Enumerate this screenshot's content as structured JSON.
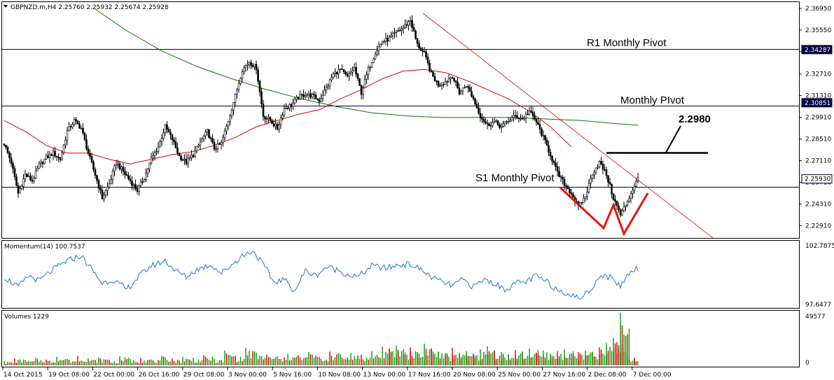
{
  "header": {
    "symbol_line": "GBPNZD.m,H4  2.25760 2.25932 2.25674 2.25928"
  },
  "levels": {
    "r1": "R1 Monthly Pivot",
    "pivot": "Monthly PIvot",
    "s1": "S1 Monthly Pivot",
    "target": "2.2980"
  },
  "price_axis": {
    "ticks": [
      "2.36950",
      "2.35550",
      "2.34150",
      "2.32710",
      "2.31310",
      "2.29910",
      "2.28510",
      "2.27110",
      "2.25710",
      "2.24310",
      "2.22910"
    ],
    "badges": [
      {
        "value": "2.34287",
        "kind": "level"
      },
      {
        "value": "2.30851",
        "kind": "level"
      },
      {
        "value": "2.25930",
        "kind": "bid"
      }
    ]
  },
  "momentum": {
    "title": "Momentum(14) 100.7537",
    "ticks": [
      "102.7875",
      "97.6477"
    ],
    "color": "#1e78d2"
  },
  "volumes": {
    "title": "Volumes 1229",
    "ticks": [
      "49577",
      "0"
    ],
    "up_color": "#00a000",
    "down_color": "#e00000"
  },
  "time_axis": {
    "labels": [
      "14 Oct 2015",
      "19 Oct 08:00",
      "22 Oct 00:00",
      "26 Oct 16:00",
      "29 Oct 08:00",
      "3 Nov 00:00",
      "5 Nov 16:00",
      "10 Nov 08:00",
      "13 Nov 00:00",
      "17 Nov 16:00",
      "20 Nov 08:00",
      "25 Nov 00:00",
      "27 Nov 16:00",
      "2 Dec 08:00",
      "7 Dec 00:00"
    ]
  },
  "chart_data": {
    "type": "candlestick",
    "symbol": "GBPNZD.m",
    "timeframe": "H4",
    "ylim": [
      2.2225,
      2.3722
    ],
    "grid": false,
    "ma_colors": {
      "fast": "#e00000",
      "slow": "#007a00"
    },
    "annotation_colors": {
      "pattern": "#e8140a",
      "trendline": "#e00000",
      "target": "#000000"
    },
    "pivots": {
      "r1": 2.34287,
      "pivot": 2.30851,
      "s1": 2.2593,
      "target": 2.298
    },
    "close_path": [
      [
        0,
        2.282
      ],
      [
        4,
        2.27
      ],
      [
        8,
        2.25
      ],
      [
        12,
        2.262
      ],
      [
        16,
        2.258
      ],
      [
        20,
        2.268
      ],
      [
        24,
        2.273
      ],
      [
        28,
        2.276
      ],
      [
        32,
        2.272
      ],
      [
        36,
        2.29
      ],
      [
        40,
        2.297
      ],
      [
        44,
        2.292
      ],
      [
        48,
        2.276
      ],
      [
        52,
        2.262
      ],
      [
        56,
        2.247
      ],
      [
        60,
        2.256
      ],
      [
        64,
        2.27
      ],
      [
        68,
        2.264
      ],
      [
        72,
        2.258
      ],
      [
        76,
        2.252
      ],
      [
        80,
        2.26
      ],
      [
        84,
        2.272
      ],
      [
        88,
        2.28
      ],
      [
        92,
        2.293
      ],
      [
        96,
        2.285
      ],
      [
        100,
        2.274
      ],
      [
        104,
        2.27
      ],
      [
        108,
        2.275
      ],
      [
        112,
        2.283
      ],
      [
        116,
        2.29
      ],
      [
        120,
        2.279
      ],
      [
        124,
        2.282
      ],
      [
        128,
        2.297
      ],
      [
        132,
        2.313
      ],
      [
        136,
        2.33
      ],
      [
        140,
        2.335
      ],
      [
        144,
        2.331
      ],
      [
        148,
        2.3
      ],
      [
        152,
        2.297
      ],
      [
        156,
        2.292
      ],
      [
        160,
        2.305
      ],
      [
        164,
        2.307
      ],
      [
        168,
        2.312
      ],
      [
        172,
        2.314
      ],
      [
        176,
        2.313
      ],
      [
        180,
        2.31
      ],
      [
        184,
        2.318
      ],
      [
        188,
        2.327
      ],
      [
        192,
        2.33
      ],
      [
        196,
        2.325
      ],
      [
        200,
        2.331
      ],
      [
        204,
        2.315
      ],
      [
        208,
        2.33
      ],
      [
        212,
        2.341
      ],
      [
        216,
        2.348
      ],
      [
        220,
        2.35
      ],
      [
        224,
        2.354
      ],
      [
        228,
        2.357
      ],
      [
        232,
        2.362
      ],
      [
        236,
        2.346
      ],
      [
        240,
        2.34
      ],
      [
        244,
        2.327
      ],
      [
        248,
        2.32
      ],
      [
        252,
        2.322
      ],
      [
        256,
        2.326
      ],
      [
        260,
        2.315
      ],
      [
        264,
        2.32
      ],
      [
        268,
        2.311
      ],
      [
        272,
        2.3
      ],
      [
        276,
        2.294
      ],
      [
        280,
        2.296
      ],
      [
        284,
        2.293
      ],
      [
        288,
        2.297
      ],
      [
        292,
        2.3
      ],
      [
        296,
        2.298
      ],
      [
        300,
        2.303
      ],
      [
        304,
        2.296
      ],
      [
        308,
        2.286
      ],
      [
        312,
        2.275
      ],
      [
        316,
        2.263
      ],
      [
        320,
        2.256
      ],
      [
        324,
        2.25
      ],
      [
        328,
        2.241
      ],
      [
        332,
        2.248
      ],
      [
        336,
        2.263
      ],
      [
        340,
        2.27
      ],
      [
        344,
        2.262
      ],
      [
        348,
        2.247
      ],
      [
        352,
        2.236
      ],
      [
        356,
        2.245
      ],
      [
        360,
        2.255
      ],
      [
        362,
        2.2593
      ]
    ],
    "sma_fast_path": [
      [
        0,
        2.297
      ],
      [
        12,
        2.29
      ],
      [
        24,
        2.281
      ],
      [
        36,
        2.276
      ],
      [
        48,
        2.276
      ],
      [
        60,
        2.272
      ],
      [
        72,
        2.269
      ],
      [
        84,
        2.272
      ],
      [
        96,
        2.275
      ],
      [
        108,
        2.277
      ],
      [
        120,
        2.281
      ],
      [
        132,
        2.286
      ],
      [
        144,
        2.293
      ],
      [
        156,
        2.297
      ],
      [
        168,
        2.301
      ],
      [
        180,
        2.304
      ],
      [
        192,
        2.311
      ],
      [
        204,
        2.317
      ],
      [
        216,
        2.324
      ],
      [
        228,
        2.329
      ],
      [
        240,
        2.33
      ],
      [
        252,
        2.328
      ],
      [
        264,
        2.323
      ],
      [
        276,
        2.317
      ],
      [
        288,
        2.311
      ],
      [
        300,
        2.303
      ],
      [
        312,
        2.293
      ],
      [
        324,
        2.28
      ]
    ],
    "sma_slow_path": [
      [
        52,
        2.369
      ],
      [
        70,
        2.355
      ],
      [
        90,
        2.342
      ],
      [
        110,
        2.332
      ],
      [
        130,
        2.324
      ],
      [
        150,
        2.317
      ],
      [
        170,
        2.311
      ],
      [
        190,
        2.306
      ],
      [
        210,
        2.302
      ],
      [
        230,
        2.3
      ],
      [
        250,
        2.299
      ],
      [
        270,
        2.299
      ],
      [
        290,
        2.299
      ],
      [
        310,
        2.298
      ],
      [
        330,
        2.297
      ],
      [
        350,
        2.295
      ],
      [
        362,
        2.294
      ]
    ],
    "momentum_path": [
      [
        0,
        100.0
      ],
      [
        8,
        99.2
      ],
      [
        14,
        100.1
      ],
      [
        20,
        99.7
      ],
      [
        28,
        100.6
      ],
      [
        36,
        101.3
      ],
      [
        44,
        101.7
      ],
      [
        50,
        100.6
      ],
      [
        56,
        99.5
      ],
      [
        62,
        99.8
      ],
      [
        70,
        99.0
      ],
      [
        78,
        100.2
      ],
      [
        84,
        100.9
      ],
      [
        92,
        101.3
      ],
      [
        98,
        100.5
      ],
      [
        104,
        100.0
      ],
      [
        110,
        100.6
      ],
      [
        118,
        101.0
      ],
      [
        124,
        100.3
      ],
      [
        130,
        101.0
      ],
      [
        136,
        101.7
      ],
      [
        142,
        102.1
      ],
      [
        148,
        101.0
      ],
      [
        154,
        99.6
      ],
      [
        160,
        99.8
      ],
      [
        166,
        98.9
      ],
      [
        172,
        100.5
      ],
      [
        178,
        100.1
      ],
      [
        184,
        100.8
      ],
      [
        190,
        100.6
      ],
      [
        196,
        100.2
      ],
      [
        202,
        100.0
      ],
      [
        210,
        100.9
      ],
      [
        218,
        100.7
      ],
      [
        226,
        101.0
      ],
      [
        232,
        101.0
      ],
      [
        238,
        100.6
      ],
      [
        244,
        100.0
      ],
      [
        250,
        99.6
      ],
      [
        256,
        99.3
      ],
      [
        262,
        99.8
      ],
      [
        268,
        99.2
      ],
      [
        274,
        99.8
      ],
      [
        280,
        99.5
      ],
      [
        286,
        99.0
      ],
      [
        292,
        99.5
      ],
      [
        298,
        99.6
      ],
      [
        304,
        100.1
      ],
      [
        310,
        99.6
      ],
      [
        316,
        99.0
      ],
      [
        322,
        98.7
      ],
      [
        328,
        98.3
      ],
      [
        334,
        98.8
      ],
      [
        340,
        100.1
      ],
      [
        346,
        100.0
      ],
      [
        352,
        99.3
      ],
      [
        358,
        100.5
      ],
      [
        362,
        100.75
      ]
    ],
    "volume_bars": [
      [
        0,
        4000,
        "up"
      ],
      [
        6,
        6500,
        "down"
      ],
      [
        12,
        5000,
        "up"
      ],
      [
        18,
        7000,
        "up"
      ],
      [
        24,
        5500,
        "down"
      ],
      [
        30,
        8000,
        "up"
      ],
      [
        36,
        6000,
        "up"
      ],
      [
        42,
        9000,
        "down"
      ],
      [
        48,
        6500,
        "up"
      ],
      [
        54,
        7500,
        "up"
      ],
      [
        60,
        5000,
        "down"
      ],
      [
        66,
        8500,
        "up"
      ],
      [
        72,
        6000,
        "up"
      ],
      [
        78,
        7000,
        "down"
      ],
      [
        84,
        5500,
        "up"
      ],
      [
        90,
        9000,
        "up"
      ],
      [
        96,
        6500,
        "down"
      ],
      [
        102,
        8000,
        "up"
      ],
      [
        108,
        7000,
        "up"
      ],
      [
        114,
        9500,
        "down"
      ],
      [
        120,
        6000,
        "up"
      ],
      [
        126,
        14000,
        "up"
      ],
      [
        132,
        9000,
        "down"
      ],
      [
        138,
        16500,
        "up"
      ],
      [
        144,
        12000,
        "up"
      ],
      [
        150,
        10000,
        "down"
      ],
      [
        156,
        8500,
        "up"
      ],
      [
        162,
        11000,
        "up"
      ],
      [
        168,
        9500,
        "down"
      ],
      [
        174,
        12500,
        "up"
      ],
      [
        180,
        8000,
        "up"
      ],
      [
        186,
        13000,
        "down"
      ],
      [
        192,
        10500,
        "up"
      ],
      [
        198,
        11500,
        "up"
      ],
      [
        204,
        10000,
        "down"
      ],
      [
        210,
        13500,
        "up"
      ],
      [
        216,
        17500,
        "up"
      ],
      [
        220,
        16000,
        "down"
      ],
      [
        224,
        18500,
        "up"
      ],
      [
        228,
        15500,
        "up"
      ],
      [
        232,
        17000,
        "down"
      ],
      [
        236,
        12500,
        "up"
      ],
      [
        240,
        20500,
        "up"
      ],
      [
        244,
        16000,
        "down"
      ],
      [
        248,
        13000,
        "up"
      ],
      [
        252,
        11500,
        "up"
      ],
      [
        256,
        16500,
        "down"
      ],
      [
        260,
        12000,
        "up"
      ],
      [
        264,
        13500,
        "up"
      ],
      [
        268,
        11000,
        "down"
      ],
      [
        272,
        15000,
        "up"
      ],
      [
        276,
        18000,
        "up"
      ],
      [
        280,
        14000,
        "down"
      ],
      [
        284,
        12500,
        "up"
      ],
      [
        288,
        10500,
        "up"
      ],
      [
        292,
        14500,
        "down"
      ],
      [
        296,
        13000,
        "up"
      ],
      [
        300,
        16000,
        "up"
      ],
      [
        304,
        12000,
        "down"
      ],
      [
        308,
        14000,
        "up"
      ],
      [
        312,
        11000,
        "up"
      ],
      [
        316,
        13500,
        "down"
      ],
      [
        320,
        15000,
        "up"
      ],
      [
        324,
        11500,
        "up"
      ],
      [
        328,
        12500,
        "down"
      ],
      [
        332,
        14000,
        "up"
      ],
      [
        336,
        13000,
        "up"
      ],
      [
        340,
        17000,
        "down"
      ],
      [
        344,
        21000,
        "up"
      ],
      [
        348,
        26000,
        "up"
      ],
      [
        350,
        22000,
        "down"
      ],
      [
        352,
        49577,
        "up"
      ],
      [
        356,
        8000,
        "up"
      ],
      [
        360,
        6000,
        "down"
      ]
    ]
  }
}
